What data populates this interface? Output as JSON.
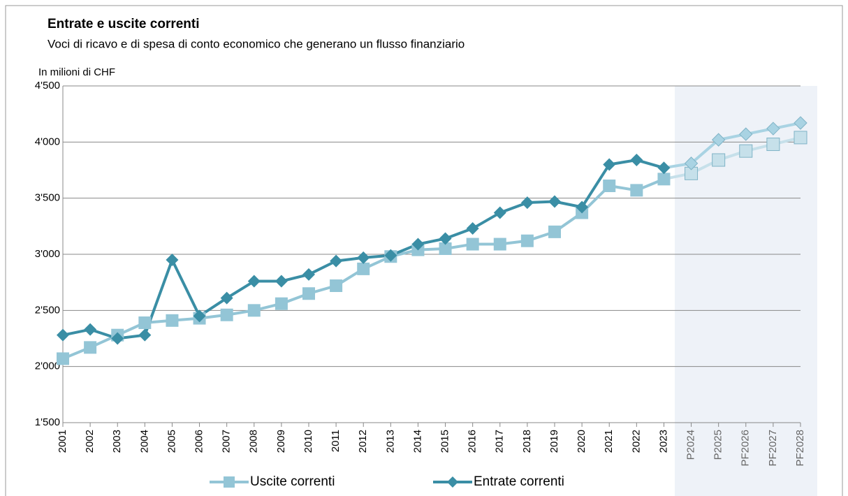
{
  "chart_data": {
    "type": "line",
    "title": "Entrate e uscite correnti",
    "subtitle": "Voci di ricavo e di spesa di conto economico che generano un flusso finanziario",
    "y_axis_label": "In milioni di CHF",
    "categories": [
      "2001",
      "2002",
      "2003",
      "2004",
      "2005",
      "2006",
      "2007",
      "2008",
      "2009",
      "2010",
      "2011",
      "2012",
      "2013",
      "2014",
      "2015",
      "2016",
      "2017",
      "2018",
      "2019",
      "2020",
      "2021",
      "2022",
      "2023",
      "P2024",
      "P2025",
      "PF2026",
      "PF2027",
      "PF2028"
    ],
    "series": [
      {
        "name": "Uscite correnti",
        "color": "#93c5d6",
        "forecast_color": "#c6e0ea",
        "marker": "square",
        "values": [
          2070,
          2170,
          2280,
          2390,
          2410,
          2430,
          2460,
          2500,
          2560,
          2650,
          2720,
          2870,
          2980,
          3040,
          3050,
          3090,
          3090,
          3120,
          3200,
          3370,
          3610,
          3570,
          3670,
          3720,
          3840,
          3920,
          3980,
          4040
        ]
      },
      {
        "name": "Entrate correnti",
        "color": "#3a8ea5",
        "forecast_color": "#a9d3e3",
        "marker": "diamond",
        "values": [
          2280,
          2330,
          2250,
          2280,
          2950,
          2450,
          2610,
          2760,
          2760,
          2820,
          2940,
          2970,
          2990,
          3090,
          3140,
          3230,
          3370,
          3460,
          3470,
          3420,
          3800,
          3840,
          3770,
          3810,
          4020,
          4070,
          4120,
          4170
        ]
      }
    ],
    "ylim": [
      1500,
      4500
    ],
    "yticks": [
      {
        "value": 1500,
        "label": "1'500"
      },
      {
        "value": 2000,
        "label": "2'000"
      },
      {
        "value": 2500,
        "label": "2'500"
      },
      {
        "value": 3000,
        "label": "3'000"
      },
      {
        "value": 3500,
        "label": "3'500"
      },
      {
        "value": 4000,
        "label": "4'000"
      },
      {
        "value": 4500,
        "label": "4'500"
      }
    ],
    "grid": true,
    "legend": "bottom"
  }
}
